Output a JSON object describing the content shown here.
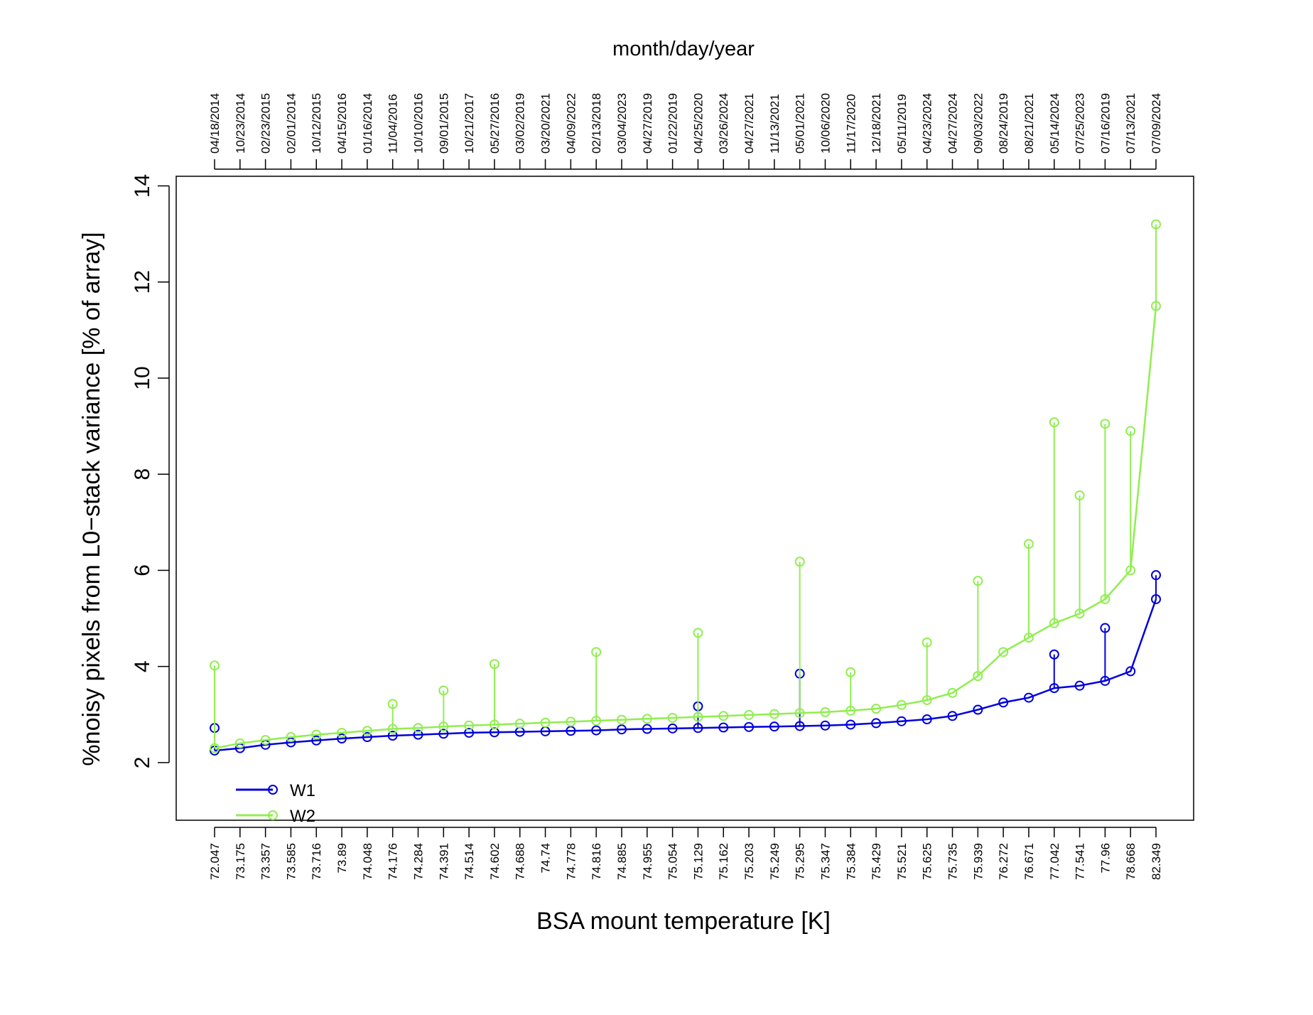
{
  "chart_data": {
    "type": "line",
    "title_top": "month/day/year",
    "xlabel": "BSA mount temperature [K]",
    "ylabel": "%noisy pixels from L0−stack variance [% of array]",
    "ylim": [
      0.8,
      14.2
    ],
    "y_ticks": [
      2,
      4,
      6,
      8,
      10,
      12,
      14
    ],
    "y_tick_labels": [
      "2",
      "4",
      "6",
      "8",
      "10",
      "12",
      "14"
    ],
    "x_tick_labels": [
      "72.047",
      "73.175",
      "73.357",
      "73.585",
      "73.716",
      "73.89",
      "74.048",
      "74.176",
      "74.284",
      "74.391",
      "74.514",
      "74.602",
      "74.688",
      "74.74",
      "74.778",
      "74.816",
      "74.885",
      "74.955",
      "75.054",
      "75.129",
      "75.162",
      "75.203",
      "75.249",
      "75.295",
      "75.347",
      "75.384",
      "75.429",
      "75.521",
      "75.625",
      "75.735",
      "75.939",
      "76.272",
      "76.671",
      "77.042",
      "77.541",
      "77.96",
      "78.668",
      "82.349"
    ],
    "top_tick_labels": [
      "04/18/2014",
      "10/23/2014",
      "02/23/2015",
      "02/01/2014",
      "10/12/2015",
      "04/15/2016",
      "01/16/2014",
      "11/04/2016",
      "10/10/2016",
      "09/01/2015",
      "10/21/2017",
      "05/27/2016",
      "03/02/2019",
      "03/20/2021",
      "04/09/2022",
      "02/13/2018",
      "03/04/2023",
      "04/27/2019",
      "01/22/2019",
      "04/25/2020",
      "03/26/2024",
      "04/27/2021",
      "11/13/2021",
      "05/01/2021",
      "10/06/2020",
      "11/17/2020",
      "12/18/2021",
      "05/11/2019",
      "04/23/2024",
      "04/27/2024",
      "09/03/2022",
      "08/24/2019",
      "08/21/2021",
      "05/14/2024",
      "07/25/2023",
      "07/16/2019",
      "07/13/2021",
      "07/09/2024"
    ],
    "legend_position": "bottom-left",
    "series": [
      {
        "name": "W1",
        "color": "#0000dd",
        "values": [
          2.25,
          2.3,
          2.37,
          2.42,
          2.46,
          2.5,
          2.53,
          2.56,
          2.58,
          2.6,
          2.62,
          2.63,
          2.64,
          2.65,
          2.66,
          2.67,
          2.69,
          2.7,
          2.71,
          2.72,
          2.73,
          2.74,
          2.75,
          2.76,
          2.77,
          2.79,
          2.82,
          2.86,
          2.9,
          2.97,
          3.1,
          3.25,
          3.35,
          3.55,
          3.6,
          3.7,
          3.9,
          5.4
        ],
        "spikes": [
          [
            0,
            2.72
          ],
          [
            19,
            3.17
          ],
          [
            23,
            3.85
          ],
          [
            33,
            4.25
          ],
          [
            35,
            4.8
          ],
          [
            37,
            5.9
          ]
        ]
      },
      {
        "name": "W2",
        "color": "#90ee50",
        "values": [
          2.3,
          2.4,
          2.47,
          2.53,
          2.58,
          2.62,
          2.66,
          2.7,
          2.72,
          2.75,
          2.77,
          2.79,
          2.81,
          2.83,
          2.85,
          2.87,
          2.89,
          2.91,
          2.93,
          2.95,
          2.97,
          2.99,
          3.01,
          3.03,
          3.05,
          3.08,
          3.12,
          3.2,
          3.3,
          3.45,
          3.8,
          4.3,
          4.6,
          4.9,
          5.1,
          5.4,
          6.0,
          11.5
        ],
        "spikes": [
          [
            0,
            4.02
          ],
          [
            7,
            3.22
          ],
          [
            9,
            3.5
          ],
          [
            11,
            4.05
          ],
          [
            15,
            4.3
          ],
          [
            19,
            4.7
          ],
          [
            23,
            6.18
          ],
          [
            25,
            3.88
          ],
          [
            28,
            4.5
          ],
          [
            30,
            5.78
          ],
          [
            32,
            6.55
          ],
          [
            33,
            9.08
          ],
          [
            34,
            7.56
          ],
          [
            35,
            9.05
          ],
          [
            36,
            8.9
          ],
          [
            37,
            13.2
          ]
        ]
      }
    ]
  }
}
